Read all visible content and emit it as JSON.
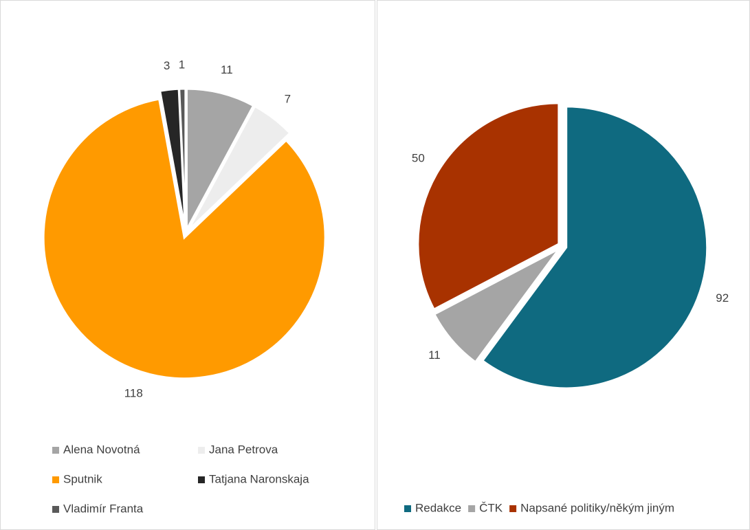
{
  "chart_data": [
    {
      "type": "pie",
      "categories": [
        "Alena Novotná",
        "Jana Petrova",
        "Sputnik",
        "Tatjana Naronskaja",
        "Vladimír Franta"
      ],
      "values": [
        11,
        7,
        118,
        3,
        1
      ],
      "colors": [
        "#a5a5a5",
        "#ededed",
        "#ff9a00",
        "#262626",
        "#595959"
      ],
      "legend": "bottom"
    },
    {
      "type": "pie",
      "categories": [
        "Redakce",
        "ČTK",
        "Napsané politiky/někým jiným"
      ],
      "values": [
        92,
        11,
        50
      ],
      "colors": [
        "#0f6a80",
        "#a5a5a5",
        "#a83200"
      ],
      "legend": "bottom"
    }
  ]
}
